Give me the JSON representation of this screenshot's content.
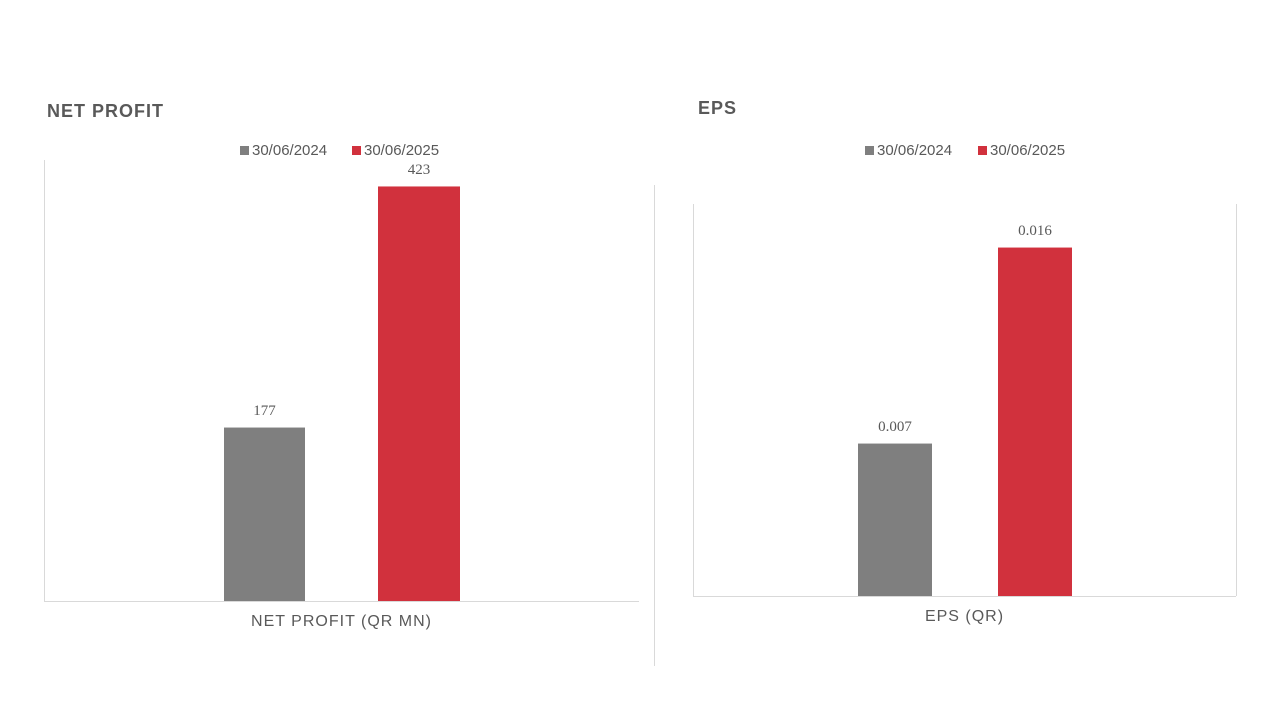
{
  "chart_data": [
    {
      "type": "bar",
      "title": "NET PROFIT",
      "categories": [
        "NET PROFIT (QR MN)"
      ],
      "series": [
        {
          "name": "30/06/2024",
          "color": "#7f7f7f",
          "values": [
            177
          ]
        },
        {
          "name": "30/06/2025",
          "color": "#d1313d",
          "values": [
            423
          ]
        }
      ],
      "ylim": [
        0,
        450
      ]
    },
    {
      "type": "bar",
      "title": "EPS",
      "categories": [
        "EPS (QR)"
      ],
      "series": [
        {
          "name": "30/06/2024",
          "color": "#7f7f7f",
          "values": [
            0.007
          ]
        },
        {
          "name": "30/06/2025",
          "color": "#d1313d",
          "values": [
            0.016
          ]
        }
      ],
      "ylim": [
        0,
        0.018
      ]
    }
  ]
}
